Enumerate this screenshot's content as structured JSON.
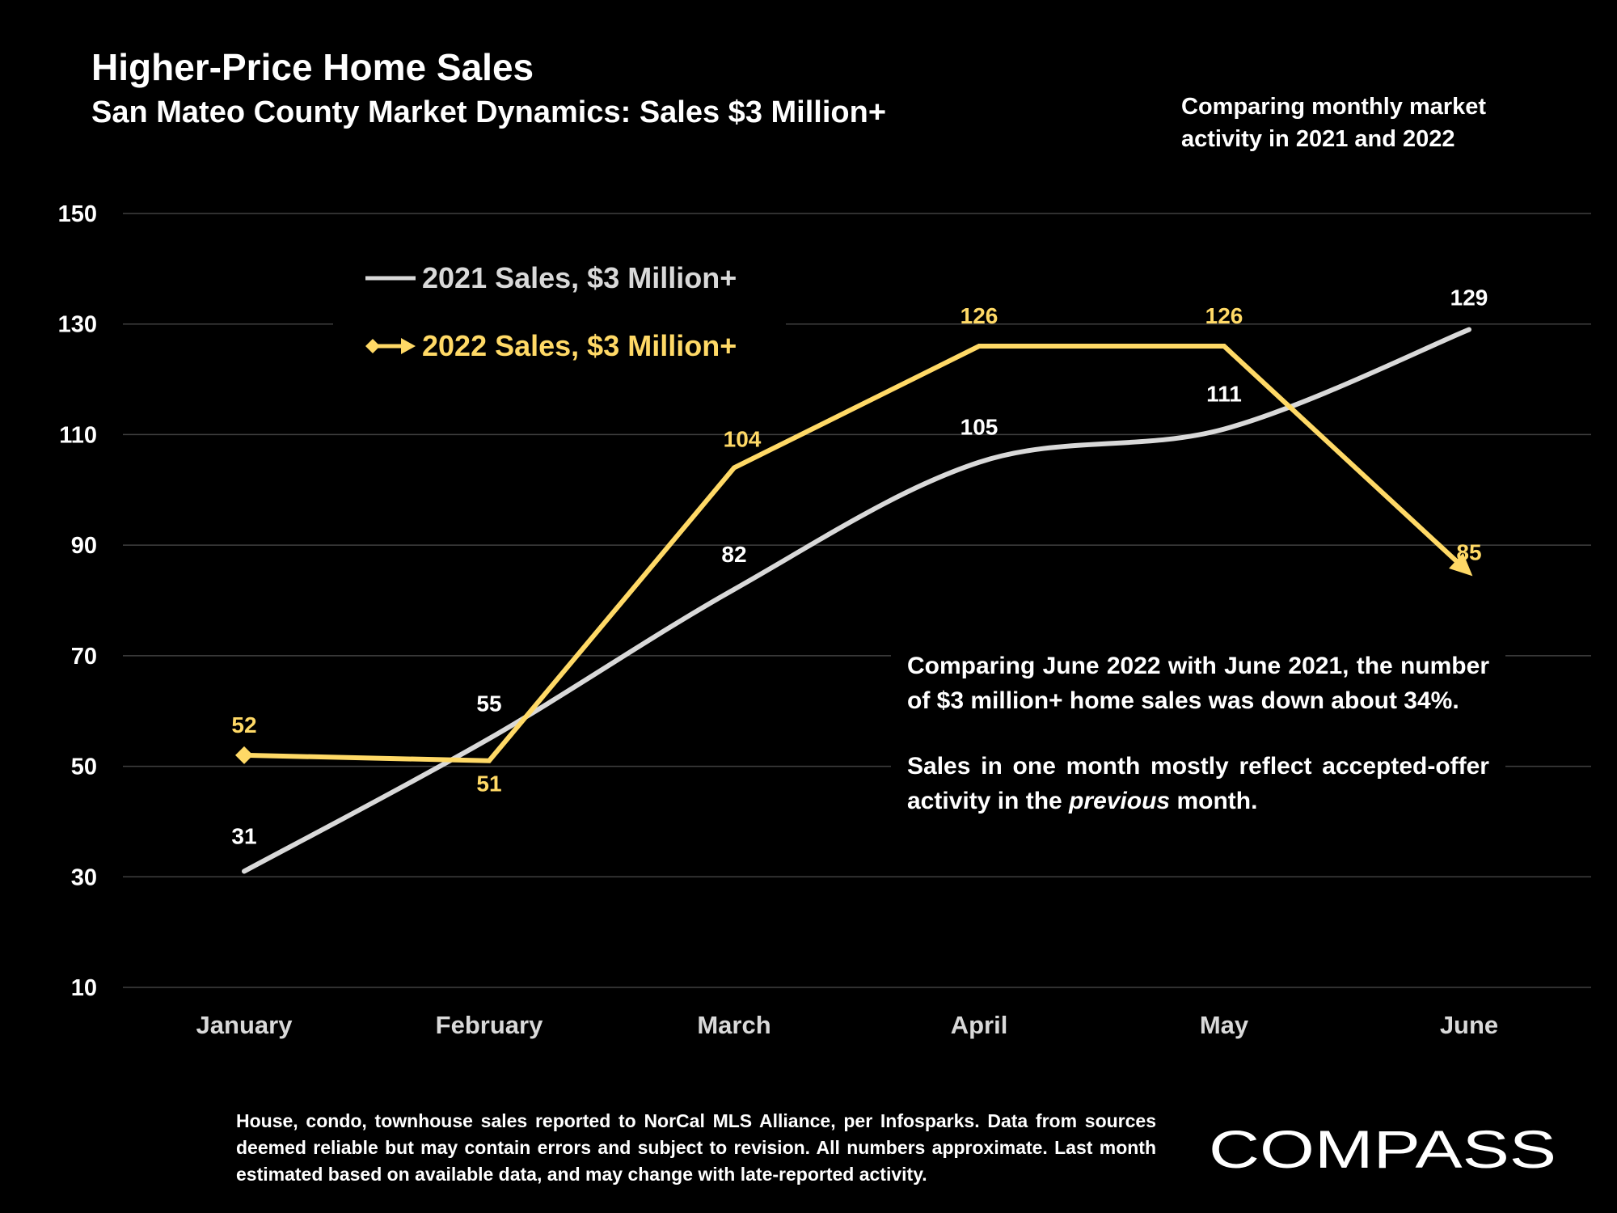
{
  "header": {
    "title": "Higher-Price Home Sales",
    "subtitle": "San Mateo County Market Dynamics: Sales $3 Million+",
    "note_line1": "Comparing monthly market",
    "note_line2": "activity in 2021 and 2022"
  },
  "annotation": {
    "para1": "Comparing June 2022 with June 2021, the number of $3 million+ home sales was down about 34%.",
    "para2_before": "Sales in one month mostly reflect accepted-offer activity in the ",
    "para2_italic": "previous",
    "para2_after": " month."
  },
  "footer": {
    "disclaimer": "House, condo, townhouse sales reported to NorCal MLS Alliance, per Infosparks. Data from sources deemed reliable but may contain errors and subject to revision. All numbers approximate. Last month estimated based on available data, and may change with late-reported activity."
  },
  "logo": {
    "text": "COMPASS"
  },
  "colors": {
    "series_2021": "#d9d9d9",
    "series_2022": "#ffd966",
    "grid": "#404040",
    "background": "#000000"
  },
  "chart_data": {
    "type": "line",
    "categories": [
      "January",
      "February",
      "March",
      "April",
      "May",
      "June"
    ],
    "ylim": [
      10,
      150
    ],
    "yticks": [
      10,
      30,
      50,
      70,
      90,
      110,
      130,
      150
    ],
    "grid": true,
    "legend_position": "top-left",
    "series": [
      {
        "name": "2021 Sales, $3 Million+",
        "values": [
          31,
          55,
          82,
          105,
          111,
          129
        ],
        "color": "#d9d9d9",
        "smooth": true,
        "marker": "none"
      },
      {
        "name": "2022 Sales, $3 Million+",
        "values": [
          52,
          51,
          104,
          126,
          126,
          85
        ],
        "color": "#ffd966",
        "smooth": false,
        "marker": "diamond",
        "end_marker": "arrow"
      }
    ]
  }
}
